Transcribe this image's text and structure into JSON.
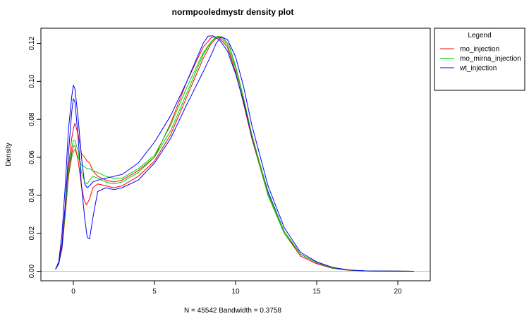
{
  "chart_data": {
    "type": "line",
    "title": "normpooledmystr density plot",
    "xlabel": "N = 45542   Bandwidth = 0.3758",
    "ylabel": "Density",
    "xlim": [
      -2,
      22
    ],
    "ylim": [
      -0.005,
      0.128
    ],
    "x_ticks": [
      0,
      5,
      10,
      15,
      20
    ],
    "x_tick_labels": [
      "0",
      "5",
      "10",
      "15",
      "20"
    ],
    "y_ticks": [
      0.0,
      0.02,
      0.04,
      0.06,
      0.08,
      0.1,
      0.12
    ],
    "y_tick_labels": [
      "0.00",
      "0.02",
      "0.04",
      "0.06",
      "0.08",
      "0.10",
      "0.12"
    ],
    "zero_line": true,
    "grid": false,
    "legend": {
      "title": "Legend",
      "position": "top-right-outside",
      "entries": [
        {
          "name": "mo_injection",
          "color": "#ff0000"
        },
        {
          "name": "mo_mirna_injection",
          "color": "#00cd00"
        },
        {
          "name": "wt_injection",
          "color": "#0000ff"
        }
      ]
    },
    "series": [
      {
        "name": "mo_injection",
        "color": "#ff0000",
        "x": [
          -1.1,
          -0.9,
          -0.7,
          -0.5,
          -0.3,
          -0.1,
          0.0,
          0.1,
          0.3,
          0.5,
          0.7,
          0.85,
          1.0,
          1.2,
          1.5,
          2,
          2.5,
          3,
          4,
          5,
          6,
          7,
          8,
          8.5,
          8.7,
          9,
          9.5,
          10,
          10.5,
          11,
          12,
          13,
          14,
          15,
          16,
          17,
          18,
          20,
          21
        ],
        "y": [
          0.001,
          0.005,
          0.015,
          0.035,
          0.055,
          0.07,
          0.075,
          0.078,
          0.072,
          0.062,
          0.06,
          0.058,
          0.057,
          0.053,
          0.05,
          0.048,
          0.047,
          0.048,
          0.053,
          0.06,
          0.078,
          0.1,
          0.118,
          0.123,
          0.1235,
          0.123,
          0.118,
          0.105,
          0.088,
          0.07,
          0.04,
          0.02,
          0.008,
          0.004,
          0.0015,
          0.0005,
          0.0002,
          5e-05,
          0.0
        ]
      },
      {
        "name": "mo_mirna_injection",
        "color": "#00cd00",
        "x": [
          -1.1,
          -0.9,
          -0.7,
          -0.5,
          -0.3,
          -0.1,
          0.0,
          0.1,
          0.3,
          0.5,
          0.7,
          0.85,
          1.0,
          1.2,
          1.5,
          2,
          2.5,
          3,
          4,
          5,
          6,
          7,
          8,
          8.5,
          8.8,
          9.1,
          9.5,
          10,
          10.5,
          11,
          12,
          13,
          14,
          15,
          16,
          17,
          18,
          20,
          21
        ],
        "y": [
          0.001,
          0.004,
          0.012,
          0.03,
          0.05,
          0.06,
          0.063,
          0.064,
          0.06,
          0.056,
          0.055,
          0.054,
          0.054,
          0.053,
          0.052,
          0.05,
          0.049,
          0.049,
          0.054,
          0.061,
          0.077,
          0.097,
          0.115,
          0.121,
          0.1235,
          0.123,
          0.119,
          0.107,
          0.09,
          0.071,
          0.04,
          0.02,
          0.009,
          0.0045,
          0.0017,
          0.0006,
          0.0002,
          5e-05,
          0.0
        ]
      },
      {
        "name": "wt_injection",
        "color": "#0000ff",
        "x": [
          -1.1,
          -0.9,
          -0.7,
          -0.5,
          -0.3,
          -0.1,
          0.0,
          0.1,
          0.3,
          0.5,
          0.7,
          0.85,
          1.0,
          1.2,
          1.5,
          2,
          2.5,
          3,
          4,
          5,
          6,
          7,
          8,
          8.3,
          8.6,
          9,
          9.5,
          10,
          10.5,
          11,
          12,
          13,
          14,
          15,
          16,
          17,
          18,
          20,
          21
        ],
        "y": [
          0.001,
          0.005,
          0.02,
          0.045,
          0.075,
          0.092,
          0.098,
          0.096,
          0.08,
          0.06,
          0.046,
          0.044,
          0.045,
          0.047,
          0.048,
          0.049,
          0.05,
          0.051,
          0.057,
          0.068,
          0.082,
          0.1,
          0.12,
          0.1238,
          0.124,
          0.122,
          0.116,
          0.104,
          0.089,
          0.071,
          0.042,
          0.021,
          0.009,
          0.0045,
          0.0017,
          0.0006,
          0.0002,
          5e-05,
          0.0
        ]
      },
      {
        "name": "",
        "color": "#ff0000",
        "x": [
          -1.1,
          -0.9,
          -0.7,
          -0.5,
          -0.3,
          -0.1,
          0.0,
          0.1,
          0.3,
          0.5,
          0.65,
          0.8,
          1.0,
          1.2,
          1.5,
          2,
          2.5,
          3,
          4,
          5,
          6,
          7,
          8,
          8.5,
          8.9,
          9.2,
          9.6,
          10,
          10.5,
          11,
          12,
          13,
          14,
          15,
          16,
          17,
          18,
          20,
          21
        ],
        "y": [
          0.001,
          0.004,
          0.012,
          0.03,
          0.05,
          0.062,
          0.066,
          0.066,
          0.058,
          0.045,
          0.038,
          0.035,
          0.038,
          0.044,
          0.046,
          0.045,
          0.044,
          0.045,
          0.05,
          0.058,
          0.072,
          0.092,
          0.112,
          0.12,
          0.1235,
          0.123,
          0.119,
          0.108,
          0.091,
          0.072,
          0.041,
          0.021,
          0.009,
          0.0045,
          0.0017,
          0.0006,
          0.0002,
          5e-05,
          0.0
        ]
      },
      {
        "name": "",
        "color": "#00cd00",
        "x": [
          -1.1,
          -0.9,
          -0.7,
          -0.5,
          -0.3,
          -0.1,
          0.0,
          0.1,
          0.3,
          0.5,
          0.7,
          0.85,
          1.0,
          1.2,
          1.5,
          2,
          2.5,
          3,
          4,
          5,
          6,
          7,
          8,
          8.5,
          8.9,
          9.2,
          9.6,
          10,
          10.5,
          11,
          12,
          13,
          14,
          15,
          16,
          17,
          18,
          20,
          21
        ],
        "y": [
          0.001,
          0.004,
          0.013,
          0.032,
          0.053,
          0.065,
          0.069,
          0.069,
          0.063,
          0.052,
          0.047,
          0.046,
          0.048,
          0.05,
          0.049,
          0.047,
          0.046,
          0.047,
          0.052,
          0.06,
          0.074,
          0.094,
          0.114,
          0.121,
          0.1238,
          0.1232,
          0.119,
          0.108,
          0.091,
          0.072,
          0.041,
          0.021,
          0.009,
          0.0045,
          0.0017,
          0.0006,
          0.0002,
          5e-05,
          0.0
        ]
      },
      {
        "name": "",
        "color": "#0000ff",
        "x": [
          -1.1,
          -0.9,
          -0.7,
          -0.5,
          -0.3,
          -0.1,
          0.0,
          0.1,
          0.3,
          0.5,
          0.7,
          0.85,
          1.0,
          1.2,
          1.5,
          2,
          2.5,
          3,
          4,
          5,
          6,
          7,
          8,
          8.5,
          8.8,
          9.1,
          9.5,
          10,
          10.5,
          11,
          12,
          13,
          14,
          15,
          16,
          17,
          18,
          20,
          21
        ],
        "y": [
          0.001,
          0.004,
          0.013,
          0.035,
          0.062,
          0.084,
          0.091,
          0.089,
          0.07,
          0.045,
          0.028,
          0.018,
          0.017,
          0.028,
          0.042,
          0.044,
          0.043,
          0.044,
          0.048,
          0.057,
          0.07,
          0.088,
          0.105,
          0.114,
          0.12,
          0.1235,
          0.122,
          0.113,
          0.097,
          0.077,
          0.045,
          0.023,
          0.01,
          0.005,
          0.002,
          0.0007,
          0.0002,
          5e-05,
          0.0
        ]
      }
    ]
  }
}
